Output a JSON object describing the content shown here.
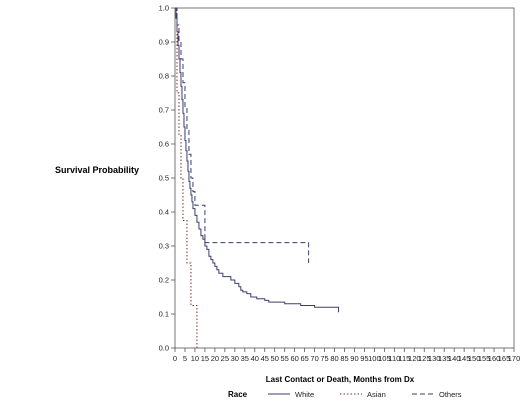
{
  "chart_data": {
    "type": "line",
    "xlabel": "Last Contact or Death, Months from Dx",
    "ylabel": "Survival Probability",
    "xlim": [
      0,
      170
    ],
    "ylim": [
      0,
      1.0
    ],
    "x_ticks": [
      0,
      5,
      10,
      15,
      20,
      25,
      30,
      35,
      40,
      45,
      50,
      55,
      60,
      65,
      70,
      75,
      80,
      85,
      90,
      95,
      100,
      105,
      110,
      115,
      120,
      125,
      130,
      135,
      140,
      145,
      150,
      155,
      160,
      165,
      170
    ],
    "y_ticks": [
      0.0,
      0.1,
      0.2,
      0.3,
      0.4,
      0.5,
      0.6,
      0.7,
      0.8,
      0.9,
      1.0
    ],
    "grid": false,
    "legend": {
      "title": "Race",
      "position": "bottom"
    },
    "series": [
      {
        "name": "White",
        "color": "#3b3f6e",
        "dash": "solid",
        "step": true,
        "points": [
          [
            0,
            1.0
          ],
          [
            0.5,
            0.97
          ],
          [
            1,
            0.93
          ],
          [
            1.5,
            0.89
          ],
          [
            2,
            0.85
          ],
          [
            2.5,
            0.81
          ],
          [
            3,
            0.77
          ],
          [
            3.5,
            0.73
          ],
          [
            4,
            0.69
          ],
          [
            4.5,
            0.65
          ],
          [
            5,
            0.61
          ],
          [
            5.5,
            0.58
          ],
          [
            6,
            0.55
          ],
          [
            6.5,
            0.52
          ],
          [
            7,
            0.49
          ],
          [
            7.5,
            0.47
          ],
          [
            8,
            0.45
          ],
          [
            8.5,
            0.43
          ],
          [
            9,
            0.41
          ],
          [
            10,
            0.39
          ],
          [
            11,
            0.37
          ],
          [
            12,
            0.35
          ],
          [
            13,
            0.33
          ],
          [
            14,
            0.32
          ],
          [
            15,
            0.3
          ],
          [
            16,
            0.29
          ],
          [
            17,
            0.27
          ],
          [
            18,
            0.26
          ],
          [
            19,
            0.25
          ],
          [
            20,
            0.24
          ],
          [
            21,
            0.23
          ],
          [
            22,
            0.22
          ],
          [
            24,
            0.21
          ],
          [
            27,
            0.21
          ],
          [
            28,
            0.2
          ],
          [
            30,
            0.19
          ],
          [
            32,
            0.18
          ],
          [
            33,
            0.17
          ],
          [
            34,
            0.165
          ],
          [
            36,
            0.16
          ],
          [
            38,
            0.15
          ],
          [
            41,
            0.145
          ],
          [
            45,
            0.14
          ],
          [
            47,
            0.135
          ],
          [
            53,
            0.135
          ],
          [
            55,
            0.13
          ],
          [
            62,
            0.13
          ],
          [
            63,
            0.125
          ],
          [
            70,
            0.12
          ],
          [
            82,
            0.12
          ],
          [
            82,
            0.105
          ]
        ]
      },
      {
        "name": "Asian",
        "color": "#8a2a2a",
        "dash": "dotted",
        "step": true,
        "points": [
          [
            0,
            1.0
          ],
          [
            1,
            0.75
          ],
          [
            2,
            0.625
          ],
          [
            3,
            0.5
          ],
          [
            4,
            0.375
          ],
          [
            5,
            0.375
          ],
          [
            6,
            0.25
          ],
          [
            8,
            0.25
          ],
          [
            8,
            0.125
          ],
          [
            11,
            0.125
          ],
          [
            11,
            0.0
          ]
        ]
      },
      {
        "name": "Others",
        "color": "#3b3f6e",
        "dash": "dashed",
        "step": true,
        "points": [
          [
            0,
            1.0
          ],
          [
            1,
            0.95
          ],
          [
            2,
            0.9
          ],
          [
            3,
            0.85
          ],
          [
            4,
            0.78
          ],
          [
            5,
            0.71
          ],
          [
            6,
            0.64
          ],
          [
            7,
            0.57
          ],
          [
            8,
            0.5
          ],
          [
            9,
            0.46
          ],
          [
            10,
            0.42
          ],
          [
            15,
            0.42
          ],
          [
            15,
            0.31
          ],
          [
            67,
            0.31
          ],
          [
            67,
            0.25
          ]
        ]
      }
    ]
  }
}
